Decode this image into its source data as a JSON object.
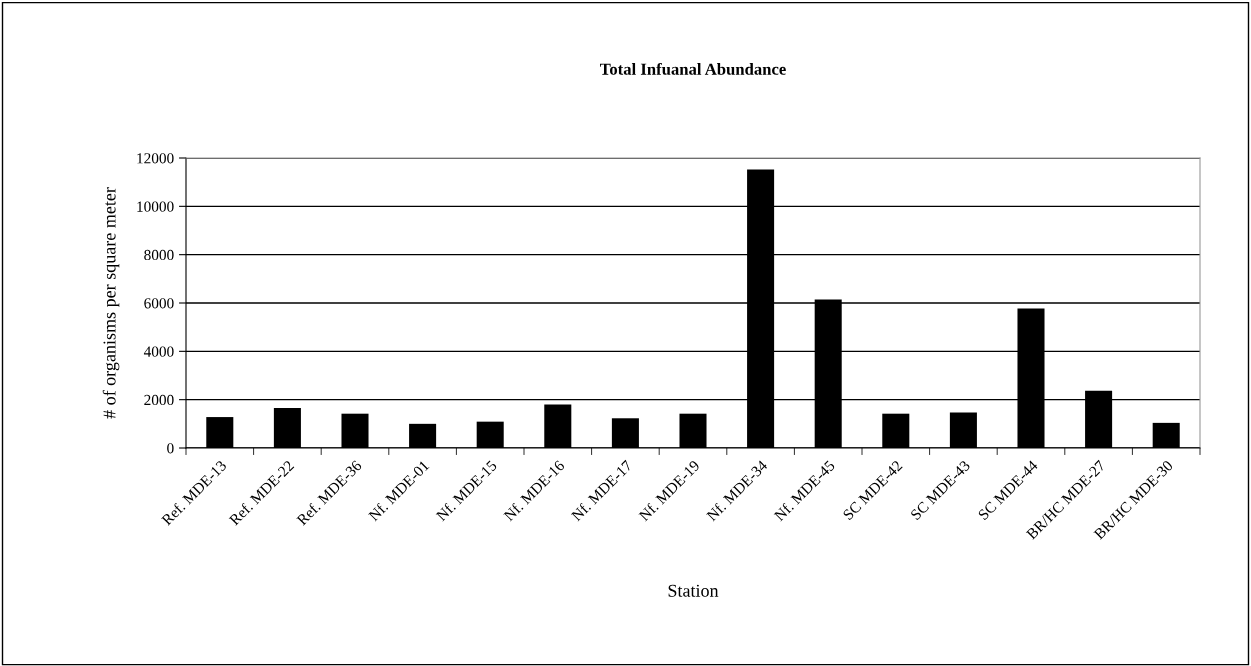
{
  "chart_data": {
    "type": "bar",
    "title": "Total Infuanal Abundance",
    "xlabel": "Station",
    "ylabel": "# of organisms per square meter",
    "categories": [
      "Ref. MDE-13",
      "Ref. MDE-22",
      "Ref. MDE-36",
      "Nf. MDE-01",
      "Nf. MDE-15",
      "Nf. MDE-16",
      "Nf. MDE-17",
      "Nf. MDE-19",
      "Nf. MDE-34",
      "Nf. MDE-45",
      "SC MDE-42",
      "SC MDE-43",
      "SC MDE-44",
      "BR/HC MDE-27",
      "BR/HC MDE-30"
    ],
    "values": [
      1280,
      1660,
      1420,
      1000,
      1090,
      1800,
      1230,
      1420,
      11520,
      6140,
      1420,
      1470,
      5770,
      2370,
      1040
    ],
    "color": "#000000",
    "ylim": [
      0,
      12000
    ],
    "yticks": [
      0,
      2000,
      4000,
      6000,
      8000,
      10000,
      12000
    ],
    "grid": "y"
  }
}
